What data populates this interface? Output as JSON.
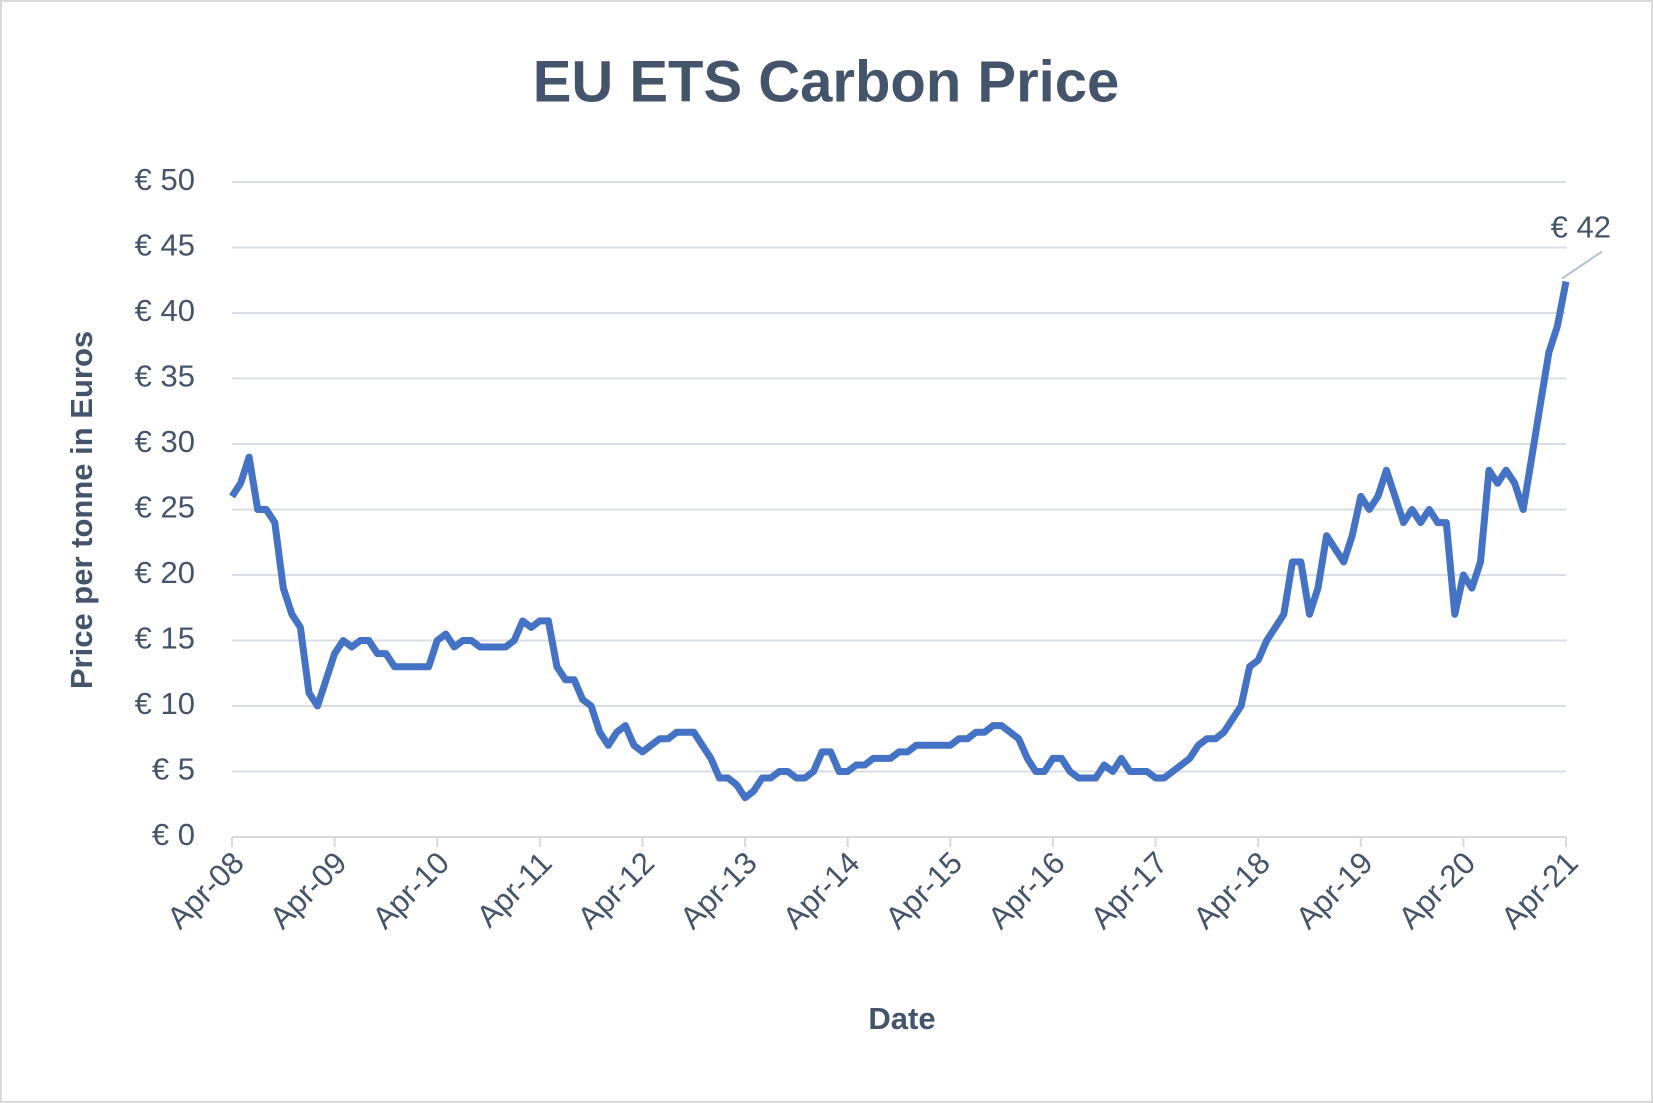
{
  "chart_data": {
    "type": "line",
    "title": "EU ETS Carbon Price",
    "x_label": "Date",
    "y_label": "Price per tonne in Euros",
    "categories": [
      "Apr-08",
      null,
      null,
      null,
      null,
      null,
      null,
      null,
      null,
      null,
      null,
      null,
      "Apr-09",
      null,
      null,
      null,
      null,
      null,
      null,
      null,
      null,
      null,
      null,
      null,
      "Apr-10",
      null,
      null,
      null,
      null,
      null,
      null,
      null,
      null,
      null,
      null,
      null,
      "Apr-11",
      null,
      null,
      null,
      null,
      null,
      null,
      null,
      null,
      null,
      null,
      null,
      "Apr-12",
      null,
      null,
      null,
      null,
      null,
      null,
      null,
      null,
      null,
      null,
      null,
      "Apr-13",
      null,
      null,
      null,
      null,
      null,
      null,
      null,
      null,
      null,
      null,
      null,
      "Apr-14",
      null,
      null,
      null,
      null,
      null,
      null,
      null,
      null,
      null,
      null,
      null,
      "Apr-15",
      null,
      null,
      null,
      null,
      null,
      null,
      null,
      null,
      null,
      null,
      null,
      "Apr-16",
      null,
      null,
      null,
      null,
      null,
      null,
      null,
      null,
      null,
      null,
      null,
      "Apr-17",
      null,
      null,
      null,
      null,
      null,
      null,
      null,
      null,
      null,
      null,
      null,
      "Apr-18",
      null,
      null,
      null,
      null,
      null,
      null,
      null,
      null,
      null,
      null,
      null,
      "Apr-19",
      null,
      null,
      null,
      null,
      null,
      null,
      null,
      null,
      null,
      null,
      null,
      "Apr-20",
      null,
      null,
      null,
      null,
      null,
      null,
      null,
      null,
      null,
      null,
      null,
      "Apr-21"
    ],
    "values": [
      26,
      27,
      29,
      25,
      25,
      24,
      19,
      17,
      16,
      11,
      10,
      12,
      14,
      15,
      14.5,
      15,
      15,
      14,
      14,
      13,
      13,
      13,
      13,
      13,
      15,
      15.5,
      14.5,
      15,
      15,
      14.5,
      14.5,
      14.5,
      14.5,
      15,
      16.5,
      16,
      16.5,
      16.5,
      13,
      12,
      12,
      10.5,
      10,
      8,
      7,
      8,
      8.5,
      7,
      6.5,
      7,
      7.5,
      7.5,
      8,
      8,
      8,
      7,
      6,
      4.5,
      4.5,
      4,
      3,
      3.5,
      4.5,
      4.5,
      5,
      5,
      4.5,
      4.5,
      5,
      6.5,
      6.5,
      5,
      5,
      5.5,
      5.5,
      6,
      6,
      6,
      6.5,
      6.5,
      7,
      7,
      7,
      7,
      7,
      7.5,
      7.5,
      8,
      8,
      8.5,
      8.5,
      8,
      7.5,
      6,
      5,
      5,
      6,
      6,
      5,
      4.5,
      4.5,
      4.5,
      5.5,
      5,
      6,
      5,
      5,
      5,
      4.5,
      4.5,
      5,
      5.5,
      6,
      7,
      7.5,
      7.5,
      8,
      9,
      10,
      13,
      13.5,
      15,
      16,
      17,
      21,
      21,
      17,
      19,
      23,
      22,
      21,
      23,
      26,
      25,
      26,
      28,
      26,
      24,
      25,
      24,
      25,
      24,
      24,
      17,
      20,
      19,
      21,
      28,
      27,
      28,
      27,
      25,
      29,
      33,
      37,
      39,
      42.4
    ],
    "value_labels": [
      null,
      null,
      null,
      null,
      null,
      null,
      null,
      null,
      null,
      null,
      null,
      null,
      null,
      null,
      null,
      null,
      null,
      null,
      null,
      null,
      null,
      null,
      null,
      null,
      null,
      null,
      null,
      null,
      null,
      null,
      null,
      null,
      null,
      null,
      null,
      null,
      null,
      null,
      null,
      null,
      null,
      null,
      null,
      null,
      null,
      null,
      null,
      null,
      null,
      null,
      null,
      null,
      null,
      null,
      null,
      null,
      null,
      null,
      null,
      null,
      null,
      null,
      null,
      null,
      null,
      null,
      null,
      null,
      null,
      null,
      null,
      null,
      null,
      null,
      null,
      null,
      null,
      null,
      null,
      null,
      null,
      null,
      null,
      null,
      null,
      null,
      null,
      null,
      null,
      null,
      null,
      null,
      null,
      null,
      null,
      null,
      null,
      null,
      null,
      null,
      null,
      null,
      null,
      null,
      null,
      null,
      null,
      null,
      null,
      null,
      null,
      null,
      null,
      null,
      null,
      null,
      null,
      null,
      null,
      null,
      null,
      null,
      null,
      null,
      null,
      null,
      null,
      null,
      null,
      null,
      null,
      null,
      null,
      null,
      null,
      null,
      null,
      null,
      null,
      null,
      null,
      null,
      null,
      null,
      null,
      null,
      null,
      null,
      null,
      null,
      null,
      null,
      null,
      null,
      null,
      null,
      "€ 42"
    ],
    "color": "#4472c4",
    "ylim": [
      0,
      50
    ],
    "yticks": [
      {
        "value": 0,
        "label": "€ 0"
      },
      {
        "value": 5,
        "label": "€ 5"
      },
      {
        "value": 10,
        "label": "€ 10"
      },
      {
        "value": 15,
        "label": "€ 15"
      },
      {
        "value": 20,
        "label": "€ 20"
      },
      {
        "value": 25,
        "label": "€ 25"
      },
      {
        "value": 30,
        "label": "€ 30"
      },
      {
        "value": 35,
        "label": "€ 35"
      },
      {
        "value": 40,
        "label": "€ 40"
      },
      {
        "value": 45,
        "label": "€ 45"
      },
      {
        "value": 50,
        "label": "€ 50"
      }
    ],
    "grid": true
  }
}
